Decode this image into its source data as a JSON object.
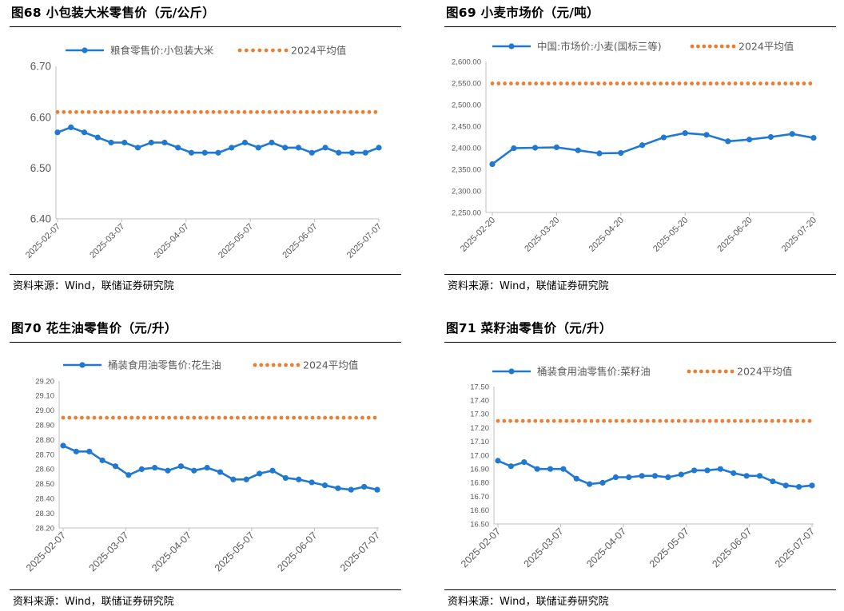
{
  "panels": [
    {
      "id": "p68",
      "title": "图68 小包装大米零售价（元/公斤）",
      "source": "资料来源：Wind，联储证券研究院",
      "chart_data": {
        "type": "line",
        "title": "图68 小包装大米零售价（元/公斤）",
        "legend": [
          "粮食零售价:小包装大米",
          "2024平均值"
        ],
        "legend_position": "top",
        "ylim": [
          6.4,
          6.7
        ],
        "yticks": [
          "6.40",
          "6.50",
          "6.60",
          "6.70"
        ],
        "xtick_labels": [
          "2025-02-07",
          "2025-03-07",
          "2025-04-07",
          "2025-05-07",
          "2025-06-07",
          "2025-07-07"
        ],
        "grid": false,
        "series": [
          {
            "name": "粮食零售价:小包装大米",
            "values": [
              6.57,
              6.58,
              6.57,
              6.56,
              6.55,
              6.55,
              6.54,
              6.55,
              6.55,
              6.54,
              6.53,
              6.53,
              6.53,
              6.54,
              6.55,
              6.54,
              6.55,
              6.54,
              6.54,
              6.53,
              6.54,
              6.53,
              6.53,
              6.53,
              6.54
            ]
          },
          {
            "name": "2024平均值",
            "value": 6.61
          }
        ]
      }
    },
    {
      "id": "p69",
      "title": "图69 小麦市场价（元/吨）",
      "source": "资料来源：Wind，联储证券研究院",
      "chart_data": {
        "type": "line",
        "title": "图69 小麦市场价（元/吨）",
        "legend": [
          "中国:市场价:小麦(国标三等)",
          "2024平均值"
        ],
        "legend_position": "top",
        "ylim": [
          2250,
          2600
        ],
        "yticks": [
          "2,250.00",
          "2,300.00",
          "2,350.00",
          "2,400.00",
          "2,450.00",
          "2,500.00",
          "2,550.00",
          "2,600.00"
        ],
        "xtick_labels": [
          "2025-02-20",
          "2025-03-20",
          "2025-04-20",
          "2025-05-20",
          "2025-06-20",
          "2025-07-20"
        ],
        "grid": false,
        "series": [
          {
            "name": "中国:市场价:小麦(国标三等)",
            "values": [
              2362,
              2399,
              2400,
              2401,
              2394,
              2387,
              2388,
              2406,
              2424,
              2434,
              2430,
              2415,
              2419,
              2425,
              2432,
              2423
            ]
          },
          {
            "name": "2024平均值",
            "value": 2549
          }
        ]
      }
    },
    {
      "id": "p70",
      "title": "图70 花生油零售价（元/升）",
      "source": "资料来源：Wind，联储证券研究院",
      "chart_data": {
        "type": "line",
        "title": "图70 花生油零售价（元/升）",
        "legend": [
          "桶装食用油零售价:花生油",
          "2024平均值"
        ],
        "legend_position": "top",
        "ylim": [
          28.2,
          29.2
        ],
        "yticks": [
          "28.20",
          "28.30",
          "28.40",
          "28.50",
          "28.60",
          "28.70",
          "28.80",
          "28.90",
          "29.00",
          "29.10",
          "29.20"
        ],
        "xtick_labels": [
          "2025-02-07",
          "2025-03-07",
          "2025-04-07",
          "2025-05-07",
          "2025-06-07",
          "2025-07-07"
        ],
        "grid": false,
        "series": [
          {
            "name": "桶装食用油零售价:花生油",
            "values": [
              28.76,
              28.72,
              28.72,
              28.66,
              28.62,
              28.56,
              28.6,
              28.61,
              28.59,
              28.62,
              28.59,
              28.61,
              28.58,
              28.53,
              28.53,
              28.57,
              28.59,
              28.54,
              28.53,
              28.51,
              28.49,
              28.47,
              28.46,
              28.48,
              28.46
            ]
          },
          {
            "name": "2024平均值",
            "value": 28.95
          }
        ]
      }
    },
    {
      "id": "p71",
      "title": "图71 菜籽油零售价（元/升）",
      "source": "资料来源：Wind，联储证券研究院",
      "chart_data": {
        "type": "line",
        "title": "图71 菜籽油零售价（元/升）",
        "legend": [
          "桶装食用油零售价:菜籽油",
          "2024平均值"
        ],
        "legend_position": "top",
        "ylim": [
          16.5,
          17.5
        ],
        "yticks": [
          "16.50",
          "16.60",
          "16.70",
          "16.80",
          "16.90",
          "17.00",
          "17.10",
          "17.20",
          "17.30",
          "17.40",
          "17.50"
        ],
        "xtick_labels": [
          "2025-02-07",
          "2025-03-07",
          "2025-04-07",
          "2025-05-07",
          "2025-06-07",
          "2025-07-07"
        ],
        "grid": false,
        "series": [
          {
            "name": "桶装食用油零售价:菜籽油",
            "values": [
              16.96,
              16.92,
              16.95,
              16.9,
              16.9,
              16.9,
              16.83,
              16.79,
              16.8,
              16.84,
              16.84,
              16.85,
              16.85,
              16.84,
              16.86,
              16.89,
              16.89,
              16.9,
              16.87,
              16.85,
              16.85,
              16.81,
              16.78,
              16.77,
              16.78
            ]
          },
          {
            "name": "2024平均值",
            "value": 17.25
          }
        ]
      }
    }
  ],
  "colors": {
    "series": "#1f78d1",
    "average": "#ed7d31",
    "axis": "#bfbfbf",
    "text": "#595959"
  }
}
